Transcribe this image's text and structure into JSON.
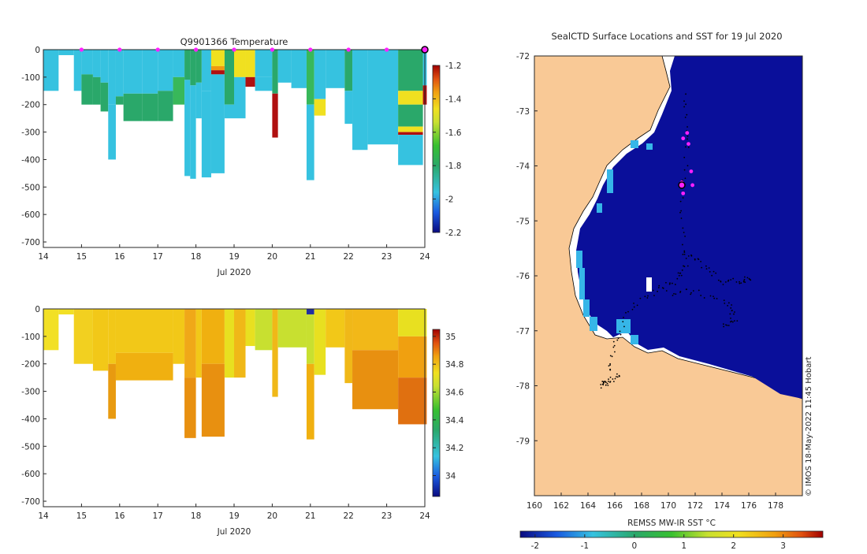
{
  "chart_data": [
    {
      "type": "heatmap",
      "title": "Q9901366  Temperature",
      "xlabel": "Jul 2020",
      "x_ticks": [
        "14",
        "15",
        "16",
        "17",
        "18",
        "19",
        "20",
        "21",
        "22",
        "23",
        "24"
      ],
      "x_range": [
        14,
        24
      ],
      "y_ticks": [
        "0",
        "-100",
        "-200",
        "-300",
        "-400",
        "-500",
        "-600",
        "-700"
      ],
      "ylim": [
        -720,
        0
      ],
      "colorbar_ticks": [
        "-1.2",
        "-1.4",
        "-1.6",
        "-1.8",
        "-2",
        "-2.2"
      ],
      "colorbar_range": [
        -2.2,
        -1.2
      ],
      "surface_markers_days": [
        15,
        16,
        17,
        18,
        19,
        20,
        21,
        22,
        23
      ],
      "current_marker_day": 24,
      "profiles": [
        {
          "x0": 14.0,
          "x1": 14.4,
          "depth": 150,
          "colors": [
            [
              0,
              150,
              "#36c2e0"
            ]
          ]
        },
        {
          "x0": 14.4,
          "x1": 14.8,
          "depth": 20,
          "colors": [
            [
              0,
              20,
              "#36c2e0"
            ]
          ]
        },
        {
          "x0": 14.8,
          "x1": 15.0,
          "depth": 150,
          "colors": [
            [
              0,
              150,
              "#36c2e0"
            ]
          ]
        },
        {
          "x0": 15.0,
          "x1": 15.3,
          "depth": 200,
          "colors": [
            [
              0,
              90,
              "#36c2e0"
            ],
            [
              90,
              200,
              "#2aa86a"
            ]
          ]
        },
        {
          "x0": 15.3,
          "x1": 15.5,
          "depth": 200,
          "colors": [
            [
              0,
              100,
              "#36c2e0"
            ],
            [
              100,
              200,
              "#2aa86a"
            ]
          ]
        },
        {
          "x0": 15.5,
          "x1": 15.7,
          "depth": 225,
          "colors": [
            [
              0,
              120,
              "#36c2e0"
            ],
            [
              120,
              225,
              "#2aa86a"
            ]
          ]
        },
        {
          "x0": 15.7,
          "x1": 15.9,
          "depth": 400,
          "colors": [
            [
              0,
              200,
              "#36c2e0"
            ],
            [
              200,
              400,
              "#36c2e0"
            ]
          ]
        },
        {
          "x0": 15.9,
          "x1": 16.1,
          "depth": 200,
          "colors": [
            [
              0,
              170,
              "#36c2e0"
            ],
            [
              170,
              200,
              "#2aa86a"
            ]
          ]
        },
        {
          "x0": 16.1,
          "x1": 16.6,
          "depth": 260,
          "colors": [
            [
              0,
              160,
              "#36c2e0"
            ],
            [
              160,
              260,
              "#2aa86a"
            ]
          ]
        },
        {
          "x0": 16.6,
          "x1": 17.0,
          "depth": 260,
          "colors": [
            [
              0,
              160,
              "#36c2e0"
            ],
            [
              160,
              260,
              "#2aa86a"
            ]
          ]
        },
        {
          "x0": 17.0,
          "x1": 17.4,
          "depth": 260,
          "colors": [
            [
              0,
              150,
              "#36c2e0"
            ],
            [
              150,
              260,
              "#2aa86a"
            ]
          ]
        },
        {
          "x0": 17.4,
          "x1": 17.7,
          "depth": 200,
          "colors": [
            [
              0,
              100,
              "#36c2e0"
            ],
            [
              100,
              200,
              "#38b85a"
            ]
          ]
        },
        {
          "x0": 17.7,
          "x1": 17.85,
          "depth": 460,
          "colors": [
            [
              0,
              110,
              "#2aa86a"
            ],
            [
              110,
              460,
              "#36c2e0"
            ]
          ]
        },
        {
          "x0": 17.85,
          "x1": 18.0,
          "depth": 470,
          "colors": [
            [
              0,
              130,
              "#2aa86a"
            ],
            [
              130,
              470,
              "#36c2e0"
            ]
          ]
        },
        {
          "x0": 18.0,
          "x1": 18.15,
          "depth": 250,
          "colors": [
            [
              0,
              120,
              "#2aa86a"
            ],
            [
              120,
              250,
              "#36c2e0"
            ]
          ]
        },
        {
          "x0": 18.15,
          "x1": 18.4,
          "depth": 465,
          "colors": [
            [
              0,
              150,
              "#36c2e0"
            ],
            [
              150,
              465,
              "#36c2e0"
            ]
          ]
        },
        {
          "x0": 18.4,
          "x1": 18.75,
          "depth": 450,
          "colors": [
            [
              0,
              60,
              "#f0e020"
            ],
            [
              60,
              75,
              "#f09a10"
            ],
            [
              75,
              90,
              "#b01010"
            ],
            [
              90,
              450,
              "#36c2e0"
            ]
          ]
        },
        {
          "x0": 18.75,
          "x1": 19.0,
          "depth": 250,
          "colors": [
            [
              0,
              200,
              "#2aa86a"
            ],
            [
              200,
              250,
              "#36c2e0"
            ]
          ]
        },
        {
          "x0": 19.0,
          "x1": 19.3,
          "depth": 250,
          "colors": [
            [
              0,
              100,
              "#f0e020"
            ],
            [
              100,
              250,
              "#36c2e0"
            ]
          ]
        },
        {
          "x0": 19.3,
          "x1": 19.55,
          "depth": 135,
          "colors": [
            [
              0,
              100,
              "#f0e020"
            ],
            [
              100,
              135,
              "#b01010"
            ]
          ]
        },
        {
          "x0": 19.55,
          "x1": 20.0,
          "depth": 150,
          "colors": [
            [
              0,
              100,
              "#36c2e0"
            ],
            [
              100,
              150,
              "#36c2e0"
            ]
          ]
        },
        {
          "x0": 20.0,
          "x1": 20.15,
          "depth": 320,
          "colors": [
            [
              0,
              160,
              "#2aa86a"
            ],
            [
              160,
              320,
              "#b01010"
            ]
          ]
        },
        {
          "x0": 20.15,
          "x1": 20.5,
          "depth": 120,
          "colors": [
            [
              0,
              120,
              "#36c2e0"
            ]
          ]
        },
        {
          "x0": 20.5,
          "x1": 20.9,
          "depth": 140,
          "colors": [
            [
              0,
              140,
              "#36c2e0"
            ]
          ]
        },
        {
          "x0": 20.9,
          "x1": 21.1,
          "depth": 475,
          "colors": [
            [
              0,
              200,
              "#38b85a"
            ],
            [
              200,
              475,
              "#36c2e0"
            ]
          ]
        },
        {
          "x0": 21.1,
          "x1": 21.4,
          "depth": 240,
          "colors": [
            [
              0,
              180,
              "#36c2e0"
            ],
            [
              180,
              240,
              "#f0e020"
            ]
          ]
        },
        {
          "x0": 21.4,
          "x1": 21.9,
          "depth": 140,
          "colors": [
            [
              0,
              140,
              "#36c2e0"
            ]
          ]
        },
        {
          "x0": 21.9,
          "x1": 22.1,
          "depth": 270,
          "colors": [
            [
              0,
              150,
              "#2aa86a"
            ],
            [
              150,
              270,
              "#36c2e0"
            ]
          ]
        },
        {
          "x0": 22.1,
          "x1": 22.5,
          "depth": 365,
          "colors": [
            [
              0,
              365,
              "#36c2e0"
            ]
          ]
        },
        {
          "x0": 22.5,
          "x1": 23.3,
          "depth": 345,
          "colors": [
            [
              0,
              345,
              "#36c2e0"
            ]
          ]
        },
        {
          "x0": 23.3,
          "x1": 23.95,
          "depth": 420,
          "colors": [
            [
              0,
              150,
              "#2aa86a"
            ],
            [
              150,
              200,
              "#f0e020"
            ],
            [
              200,
              280,
              "#2aa86a"
            ],
            [
              280,
              300,
              "#f0e020"
            ],
            [
              300,
              310,
              "#b01010"
            ],
            [
              310,
              420,
              "#36c2e0"
            ]
          ]
        },
        {
          "x0": 23.95,
          "x1": 24.05,
          "depth": 200,
          "colors": [
            [
              0,
              130,
              "#36c2e0"
            ],
            [
              130,
              200,
              "#b01010"
            ]
          ]
        }
      ]
    },
    {
      "type": "heatmap",
      "title": "",
      "xlabel": "Jul 2020",
      "x_ticks": [
        "14",
        "15",
        "16",
        "17",
        "18",
        "19",
        "20",
        "21",
        "22",
        "23",
        "24"
      ],
      "x_range": [
        14,
        24
      ],
      "y_ticks": [
        "0",
        "-100",
        "-200",
        "-300",
        "-400",
        "-500",
        "-600",
        "-700"
      ],
      "ylim": [
        -720,
        0
      ],
      "colorbar_ticks": [
        "35",
        "34.8",
        "34.6",
        "34.4",
        "34.2",
        "34"
      ],
      "colorbar_range": [
        33.85,
        35.05
      ],
      "profiles": [
        {
          "x0": 14.0,
          "x1": 14.4,
          "depth": 150,
          "colors": [
            [
              0,
              150,
              "#f2e025"
            ]
          ]
        },
        {
          "x0": 14.4,
          "x1": 14.8,
          "depth": 20,
          "colors": [
            [
              0,
              20,
              "#f2e025"
            ]
          ]
        },
        {
          "x0": 14.8,
          "x1": 15.3,
          "depth": 200,
          "colors": [
            [
              0,
              200,
              "#f2d020"
            ]
          ]
        },
        {
          "x0": 15.3,
          "x1": 15.7,
          "depth": 225,
          "colors": [
            [
              0,
              225,
              "#f2c818"
            ]
          ]
        },
        {
          "x0": 15.7,
          "x1": 15.9,
          "depth": 400,
          "colors": [
            [
              0,
              200,
              "#f2c818"
            ],
            [
              200,
              400,
              "#e89a10"
            ]
          ]
        },
        {
          "x0": 15.9,
          "x1": 17.4,
          "depth": 260,
          "colors": [
            [
              0,
              160,
              "#f2c818"
            ],
            [
              160,
              260,
              "#f0b010"
            ]
          ]
        },
        {
          "x0": 17.4,
          "x1": 17.7,
          "depth": 200,
          "colors": [
            [
              0,
              200,
              "#f2c818"
            ]
          ]
        },
        {
          "x0": 17.7,
          "x1": 18.0,
          "depth": 470,
          "colors": [
            [
              0,
              250,
              "#f0a818"
            ],
            [
              250,
              470,
              "#e89010"
            ]
          ]
        },
        {
          "x0": 18.0,
          "x1": 18.15,
          "depth": 250,
          "colors": [
            [
              0,
              250,
              "#f2c818"
            ]
          ]
        },
        {
          "x0": 18.15,
          "x1": 18.75,
          "depth": 465,
          "colors": [
            [
              0,
              200,
              "#f0b010"
            ],
            [
              200,
              465,
              "#e89010"
            ]
          ]
        },
        {
          "x0": 18.75,
          "x1": 19.0,
          "depth": 250,
          "colors": [
            [
              0,
              250,
              "#e8e020"
            ]
          ]
        },
        {
          "x0": 19.0,
          "x1": 19.3,
          "depth": 250,
          "colors": [
            [
              0,
              250,
              "#f0b818"
            ]
          ]
        },
        {
          "x0": 19.3,
          "x1": 19.55,
          "depth": 135,
          "colors": [
            [
              0,
              135,
              "#e8e020"
            ]
          ]
        },
        {
          "x0": 19.55,
          "x1": 20.0,
          "depth": 150,
          "colors": [
            [
              0,
              150,
              "#c8e030"
            ]
          ]
        },
        {
          "x0": 20.0,
          "x1": 20.15,
          "depth": 320,
          "colors": [
            [
              0,
              320,
              "#f0b818"
            ]
          ]
        },
        {
          "x0": 20.15,
          "x1": 20.9,
          "depth": 140,
          "colors": [
            [
              0,
              140,
              "#c8e030"
            ]
          ]
        },
        {
          "x0": 20.9,
          "x1": 21.1,
          "depth": 475,
          "colors": [
            [
              0,
              20,
              "#2030a0"
            ],
            [
              20,
              200,
              "#c8e030"
            ],
            [
              200,
              475,
              "#f0b010"
            ]
          ]
        },
        {
          "x0": 21.1,
          "x1": 21.4,
          "depth": 240,
          "colors": [
            [
              0,
              240,
              "#e8e020"
            ]
          ]
        },
        {
          "x0": 21.4,
          "x1": 21.9,
          "depth": 140,
          "colors": [
            [
              0,
              140,
              "#f2c818"
            ]
          ]
        },
        {
          "x0": 21.9,
          "x1": 22.1,
          "depth": 270,
          "colors": [
            [
              0,
              270,
              "#f0b818"
            ]
          ]
        },
        {
          "x0": 22.1,
          "x1": 23.3,
          "depth": 365,
          "colors": [
            [
              0,
              150,
              "#f2b818"
            ],
            [
              150,
              365,
              "#e89010"
            ]
          ]
        },
        {
          "x0": 23.3,
          "x1": 24.05,
          "depth": 420,
          "colors": [
            [
              0,
              100,
              "#e8e020"
            ],
            [
              100,
              250,
              "#f0a010"
            ],
            [
              250,
              420,
              "#e07010"
            ]
          ]
        }
      ]
    },
    {
      "type": "heatmap",
      "title": "SealCTD Surface Locations and SST for 19 Jul 2020",
      "xlabel": "",
      "x_ticks": [
        "160",
        "162",
        "164",
        "166",
        "168",
        "170",
        "172",
        "174",
        "176",
        "178"
      ],
      "y_ticks": [
        "-72",
        "-73",
        "-74",
        "-75",
        "-76",
        "-77",
        "-78",
        "-79"
      ],
      "xlim": [
        160,
        180
      ],
      "ylim": [
        -80,
        -72
      ],
      "colorbar_label": "REMSS MW-IR SST °C",
      "colorbar_ticks": [
        "-2",
        "-1",
        "0",
        "1",
        "2",
        "3"
      ],
      "colorbar_range": [
        -2.3,
        3.8
      ],
      "timestamp": "© IMOS 18-May-2022 11:45 Hobart",
      "magenta_points": [
        [
          171.4,
          -73.4
        ],
        [
          171.1,
          -73.5
        ],
        [
          171.5,
          -73.6
        ],
        [
          171.7,
          -74.1
        ],
        [
          171.0,
          -74.3
        ],
        [
          171.8,
          -74.35
        ],
        [
          171.1,
          -74.5
        ]
      ],
      "current_position": [
        171.0,
        -74.35
      ]
    }
  ]
}
